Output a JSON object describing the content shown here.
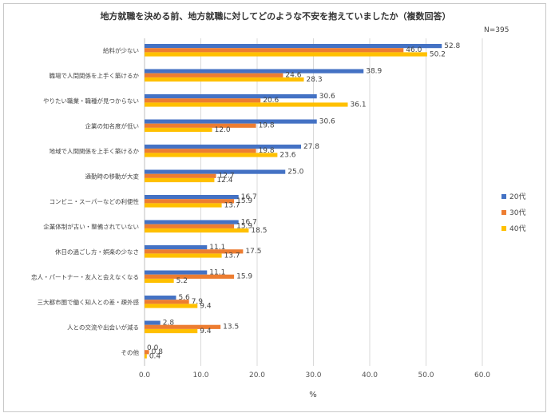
{
  "chart_data": {
    "type": "bar",
    "orientation": "horizontal",
    "title": "地方就職を決める前、地方就職に対してどのような不安を抱えていましたか（複数回答）",
    "note": "N=395",
    "xlabel": "%",
    "xlim": [
      0,
      60
    ],
    "xticks": [
      "0.0",
      "10.0",
      "20.0",
      "30.0",
      "40.0",
      "50.0",
      "60.0"
    ],
    "grid": true,
    "legend_position": "right",
    "categories": [
      "給料が少ない",
      "職場で人間関係を上手く築けるか",
      "やりたい職業・職種が見つからない",
      "企業の知名度が低い",
      "地域で人間関係を上手く築けるか",
      "通勤時の移動が大変",
      "コンビニ・スーパーなどの利便性",
      "企業体制が古い・整備されていない",
      "休日の過ごし方・娯楽の少なさ",
      "恋人・パートナー・友人と会えなくなる",
      "三大都市圏で働く知人との差・疎外感",
      "人との交流や出会いが減る",
      "その他"
    ],
    "series": [
      {
        "name": "20代",
        "color": "#4472c4",
        "values": [
          52.8,
          38.9,
          30.6,
          30.6,
          27.8,
          25.0,
          16.7,
          16.7,
          11.1,
          11.1,
          5.6,
          2.8,
          0.0
        ]
      },
      {
        "name": "30代",
        "color": "#ed7d31",
        "values": [
          46.0,
          24.6,
          20.6,
          19.8,
          19.8,
          12.7,
          15.9,
          15.9,
          17.5,
          15.9,
          7.9,
          13.5,
          0.8
        ]
      },
      {
        "name": "40代",
        "color": "#ffc000",
        "values": [
          50.2,
          28.3,
          36.1,
          12.0,
          23.6,
          12.4,
          13.7,
          18.5,
          13.7,
          5.2,
          9.4,
          9.4,
          0.4
        ]
      }
    ]
  }
}
